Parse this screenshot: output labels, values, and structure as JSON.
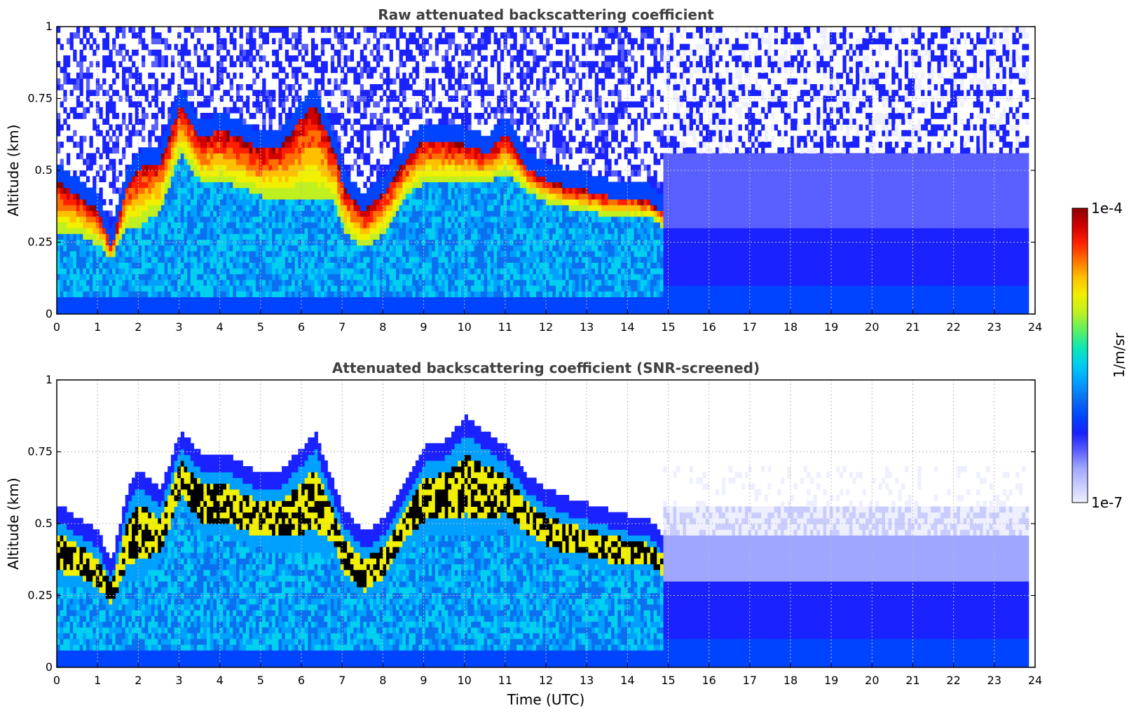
{
  "chart_data": [
    {
      "type": "heatmap",
      "title": "Raw attenuated backscattering coefficient",
      "xlabel": "",
      "ylabel": "Altitude (km)",
      "xlim": [
        0,
        24
      ],
      "ylim": [
        0,
        1
      ],
      "x_ticks": [
        "0",
        "1",
        "2",
        "3",
        "4",
        "5",
        "6",
        "7",
        "8",
        "9",
        "10",
        "11",
        "12",
        "13",
        "14",
        "15",
        "16",
        "17",
        "18",
        "19",
        "20",
        "21",
        "22",
        "23",
        "24"
      ],
      "y_ticks": [
        "0",
        "0.25",
        "0.5",
        "0.75",
        "1"
      ],
      "grid": true,
      "screened": false,
      "layer_top_km": {
        "time_utc": [
          0,
          0.5,
          1,
          1.3,
          1.7,
          2,
          2.5,
          3,
          3.5,
          4,
          4.5,
          5,
          5.5,
          6,
          6.3,
          6.8,
          7,
          7.5,
          8,
          8.5,
          9,
          9.5,
          10,
          10.5,
          11,
          11.5,
          12,
          12.5,
          13,
          13.5,
          14,
          14.5,
          14.8
        ],
        "top": [
          0.45,
          0.4,
          0.35,
          0.22,
          0.45,
          0.5,
          0.52,
          0.72,
          0.6,
          0.63,
          0.6,
          0.56,
          0.58,
          0.68,
          0.72,
          0.55,
          0.43,
          0.35,
          0.42,
          0.52,
          0.6,
          0.6,
          0.58,
          0.55,
          0.62,
          0.5,
          0.46,
          0.43,
          0.42,
          0.4,
          0.4,
          0.38,
          0.35
        ],
        "bottom": [
          0.28,
          0.27,
          0.23,
          0.18,
          0.3,
          0.3,
          0.35,
          0.55,
          0.45,
          0.45,
          0.43,
          0.4,
          0.4,
          0.4,
          0.4,
          0.38,
          0.28,
          0.22,
          0.27,
          0.4,
          0.45,
          0.45,
          0.45,
          0.45,
          0.48,
          0.42,
          0.38,
          0.36,
          0.35,
          0.33,
          0.33,
          0.33,
          0.3
        ]
      }
    },
    {
      "type": "heatmap",
      "title": "Attenuated backscattering coefficient (SNR-screened)",
      "xlabel": "Time (UTC)",
      "ylabel": "Altitude (km)",
      "xlim": [
        0,
        24
      ],
      "ylim": [
        0,
        1
      ],
      "x_ticks": [
        "0",
        "1",
        "2",
        "3",
        "4",
        "5",
        "6",
        "7",
        "8",
        "9",
        "10",
        "11",
        "12",
        "13",
        "14",
        "15",
        "16",
        "17",
        "18",
        "19",
        "20",
        "21",
        "22",
        "23",
        "24"
      ],
      "y_ticks": [
        "0",
        "0.25",
        "0.5",
        "0.75",
        "1"
      ],
      "grid": true,
      "screened": true,
      "layer_top_km": {
        "time_utc": [
          0,
          0.5,
          1,
          1.3,
          1.7,
          2,
          2.5,
          3,
          3.5,
          4,
          4.5,
          5,
          5.5,
          6,
          6.3,
          6.8,
          7,
          7.5,
          8,
          8.5,
          9,
          9.5,
          10,
          10.5,
          11,
          11.5,
          12,
          12.5,
          13,
          13.5,
          14,
          14.5,
          14.8
        ],
        "top": [
          0.5,
          0.45,
          0.4,
          0.3,
          0.55,
          0.62,
          0.55,
          0.75,
          0.68,
          0.68,
          0.64,
          0.6,
          0.62,
          0.7,
          0.75,
          0.55,
          0.48,
          0.4,
          0.45,
          0.58,
          0.7,
          0.72,
          0.8,
          0.75,
          0.7,
          0.6,
          0.55,
          0.52,
          0.5,
          0.48,
          0.46,
          0.44,
          0.4
        ],
        "bottom": [
          0.28,
          0.27,
          0.23,
          0.18,
          0.3,
          0.3,
          0.35,
          0.55,
          0.45,
          0.45,
          0.43,
          0.4,
          0.4,
          0.4,
          0.4,
          0.38,
          0.28,
          0.22,
          0.27,
          0.4,
          0.45,
          0.45,
          0.45,
          0.45,
          0.48,
          0.42,
          0.38,
          0.36,
          0.35,
          0.33,
          0.33,
          0.33,
          0.3
        ]
      }
    }
  ],
  "colorbar": {
    "label": "1/m/sr",
    "max_label": "1e-4",
    "min_label": "1e-7",
    "scale": "log",
    "colormap": [
      "#eef0ff",
      "#c8ccff",
      "#9fa6ff",
      "#5a5fff",
      "#1a22ff",
      "#0044ff",
      "#0a70f0",
      "#00a0ff",
      "#00d0f0",
      "#10e8b0",
      "#60f060",
      "#c0f020",
      "#f0f000",
      "#ffc000",
      "#ff7000",
      "#ff2000",
      "#d00000",
      "#8b0000"
    ]
  }
}
